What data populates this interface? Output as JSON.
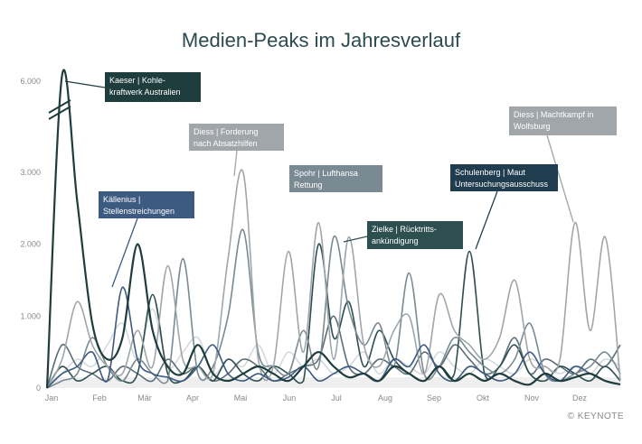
{
  "chart_data": {
    "type": "line",
    "title": "Medien-Peaks im Jahresverlauf",
    "xlabel": "",
    "ylabel": "",
    "x_ticks": [
      "Jan",
      "Feb",
      "Mär",
      "Apr",
      "Mai",
      "Jun",
      "Jul",
      "Aug",
      "Sep",
      "Okt",
      "Nov",
      "Dez"
    ],
    "y_ticks": [
      "0",
      "1.000",
      "2.000",
      "3.000",
      "6.000"
    ],
    "axis_break": "between 3.000 and 6.000",
    "grid": false,
    "series": [
      {
        "color": "#1f3d3d",
        "values": [
          0,
          6200,
          2600,
          900,
          400,
          700,
          2000,
          800,
          300,
          200,
          600,
          200,
          100,
          200,
          300,
          200,
          100,
          300,
          500,
          300,
          150,
          200,
          100,
          300,
          200,
          100,
          300,
          100,
          200,
          100,
          200,
          100,
          50,
          200,
          100,
          150,
          200,
          100,
          50
        ]
      },
      {
        "color": "#3d5a80",
        "values": [
          0,
          200,
          300,
          500,
          100,
          1400,
          400,
          200,
          150,
          100,
          300,
          600,
          200,
          100,
          200,
          100,
          150,
          300,
          100,
          200,
          300,
          200,
          100,
          400,
          300,
          600,
          200,
          100,
          300,
          200,
          100,
          200,
          500,
          200,
          100,
          300,
          200,
          100,
          50
        ]
      },
      {
        "color": "#a0a6aa",
        "values": [
          0,
          400,
          1200,
          600,
          300,
          200,
          800,
          300,
          1700,
          400,
          300,
          200,
          1800,
          3000,
          400,
          300,
          1900,
          500,
          2300,
          400,
          2100,
          600,
          300,
          800,
          1000,
          200,
          1300,
          800,
          600,
          400,
          700,
          1500,
          400,
          300,
          400,
          2300,
          800,
          2100,
          100
        ]
      },
      {
        "color": "#7a8a92",
        "values": [
          0,
          100,
          200,
          700,
          300,
          100,
          400,
          200,
          100,
          1800,
          200,
          300,
          1000,
          2200,
          500,
          300,
          200,
          800,
          300,
          2100,
          1100,
          600,
          900,
          300,
          1600,
          200,
          300,
          700,
          500,
          300,
          200,
          400,
          900,
          200,
          100,
          200,
          300,
          500,
          200
        ]
      },
      {
        "color": "#2e4f4f",
        "values": [
          0,
          300,
          100,
          200,
          300,
          100,
          200,
          1300,
          200,
          100,
          300,
          100,
          400,
          200,
          100,
          300,
          200,
          100,
          2000,
          700,
          1200,
          300,
          800,
          400,
          200,
          100,
          300,
          200,
          1900,
          200,
          300,
          600,
          200,
          100,
          300,
          200,
          100,
          300,
          100
        ]
      },
      {
        "color": "#5b6e78",
        "values": [
          0,
          600,
          300,
          200,
          100,
          300,
          200,
          100,
          400,
          200,
          300,
          100,
          200,
          400,
          300,
          100,
          200,
          300,
          400,
          1000,
          300,
          200,
          400,
          300,
          200,
          500,
          300,
          600,
          400,
          200,
          300,
          700,
          200,
          400,
          300,
          200,
          400,
          300,
          600
        ]
      },
      {
        "color": "#d6dadc",
        "values": [
          0,
          200,
          400,
          300,
          600,
          900,
          400,
          1100,
          300,
          500,
          700,
          200,
          400,
          300,
          600,
          200,
          500,
          300,
          400,
          200,
          300,
          500,
          200,
          400,
          300,
          200,
          500,
          300,
          200,
          400,
          300,
          200,
          400,
          300,
          200,
          300,
          200,
          400,
          300
        ]
      }
    ],
    "annotations": [
      {
        "text": "Kaeser | Kohle-\nkraftwerk Australien",
        "color": "#1f3d3d"
      },
      {
        "text": "Källenius |\nStellenstreichungen",
        "color": "#3d5a80"
      },
      {
        "text": "Diess | Forderung\nnach Absatzhilfen",
        "color": "#a0a6aa"
      },
      {
        "text": "Spohr | Lufthansa\nRettung",
        "color": "#7a8a92"
      },
      {
        "text": "Zielke | Rücktritts-\nankündigung",
        "color": "#2e4f4f"
      },
      {
        "text": "Schulenberg | Maut\nUntersuchungsausschuss",
        "color": "#1f3d4f"
      },
      {
        "text": "Diess | Machtkampf in\nWolfsburg",
        "color": "#a0a6aa"
      }
    ]
  },
  "credit": "© KEYNOTE"
}
